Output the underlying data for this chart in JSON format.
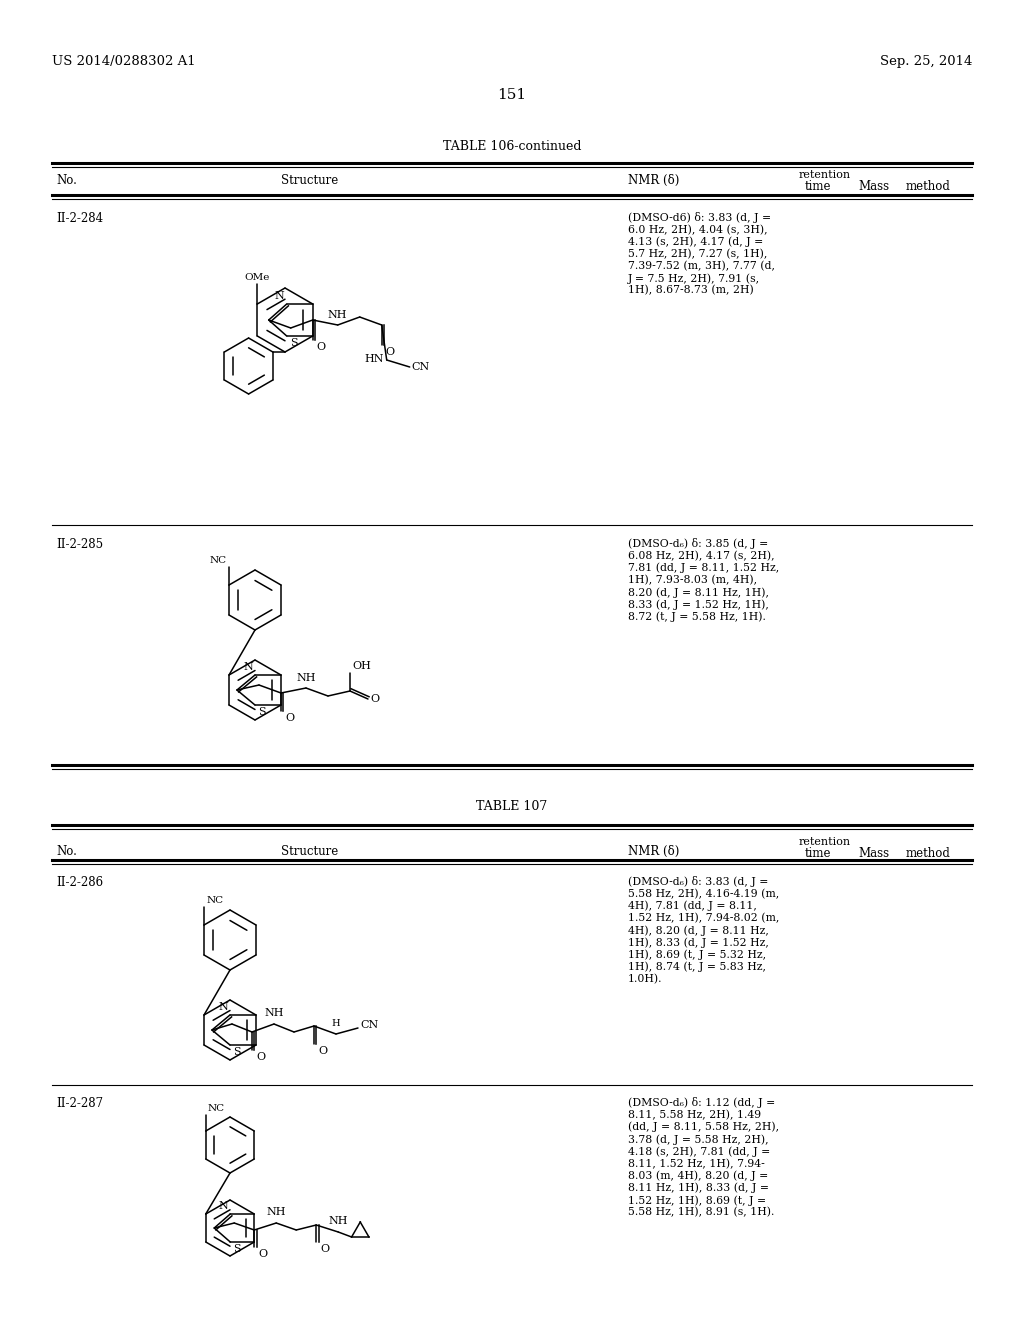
{
  "bg_color": "#ffffff",
  "page_number": "151",
  "patent_left": "US 2014/0288302 A1",
  "patent_right": "Sep. 25, 2014",
  "table1_title": "TABLE 106-continued",
  "table2_title": "TABLE 107",
  "header_no": "No.",
  "header_structure": "Structure",
  "header_nmr": "NMR (δ)",
  "header_retention": "retention",
  "header_time": "time",
  "header_mass": "Mass",
  "header_method": "method",
  "nmr_284": "(DMSO-d6) δ: 3.83 (d, J =\n6.0 Hz, 2H), 4.04 (s, 3H),\n4.13 (s, 2H), 4.17 (d, J =\n5.7 Hz, 2H), 7.27 (s, 1H),\n7.39-7.52 (m, 3H), 7.77 (d,\nJ = 7.5 Hz, 2H), 7.91 (s,\n1H), 8.67-8.73 (m, 2H)",
  "nmr_285": "(DMSO-d₆) δ: 3.85 (d, J =\n6.08 Hz, 2H), 4.17 (s, 2H),\n7.81 (dd, J = 8.11, 1.52 Hz,\n1H), 7.93-8.03 (m, 4H),\n8.20 (d, J = 8.11 Hz, 1H),\n8.33 (d, J = 1.52 Hz, 1H),\n8.72 (t, J = 5.58 Hz, 1H).",
  "nmr_286": "(DMSO-d₆) δ: 3.83 (d, J =\n5.58 Hz, 2H), 4.16-4.19 (m,\n4H), 7.81 (dd, J = 8.11,\n1.52 Hz, 1H), 7.94-8.02 (m,\n4H), 8.20 (d, J = 8.11 Hz,\n1H), 8.33 (d, J = 1.52 Hz,\n1H), 8.69 (t, J = 5.32 Hz,\n1H), 8.74 (t, J = 5.83 Hz,\n1.0H).",
  "nmr_287": "(DMSO-d₆) δ: 1.12 (dd, J =\n8.11, 5.58 Hz, 2H), 1.49\n(dd, J = 8.11, 5.58 Hz, 2H),\n3.78 (d, J = 5.58 Hz, 2H),\n4.18 (s, 2H), 7.81 (dd, J =\n8.11, 1.52 Hz, 1H), 7.94-\n8.03 (m, 4H), 8.20 (d, J =\n8.11 Hz, 1H), 8.33 (d, J =\n1.52 Hz, 1H), 8.69 (t, J =\n5.58 Hz, 1H), 8.91 (s, 1H).",
  "no_284": "II-2-284",
  "no_285": "II-2-285",
  "no_286": "II-2-286",
  "no_287": "II-2-287"
}
